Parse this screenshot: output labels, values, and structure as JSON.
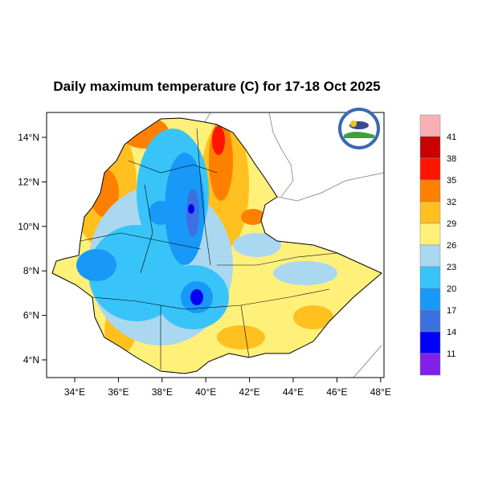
{
  "title": "Daily maximum temperature (C) for 17-18 Oct 2025",
  "map": {
    "region": "Ethiopia",
    "lon_range": [
      32.7,
      48.15
    ],
    "lat_range": [
      3.3,
      15.1
    ],
    "x_ticks": [
      "34°E",
      "36°E",
      "38°E",
      "40°E",
      "42°E",
      "44°E",
      "46°E",
      "48°E"
    ],
    "y_ticks": [
      "14°N",
      "12°N",
      "10°N",
      "8°N",
      "6°N",
      "4°N"
    ]
  },
  "colorbar": {
    "levels": [
      "41",
      "38",
      "35",
      "32",
      "29",
      "26",
      "23",
      "20",
      "17",
      "14",
      "11"
    ],
    "colors": [
      "#f9b0b4",
      "#c80000",
      "#ff1400",
      "#ff8000",
      "#ffc020",
      "#fff07a",
      "#aad8f0",
      "#38c4f8",
      "#1898f8",
      "#3c70e0",
      "#0000f8",
      "#8020e8"
    ]
  }
}
